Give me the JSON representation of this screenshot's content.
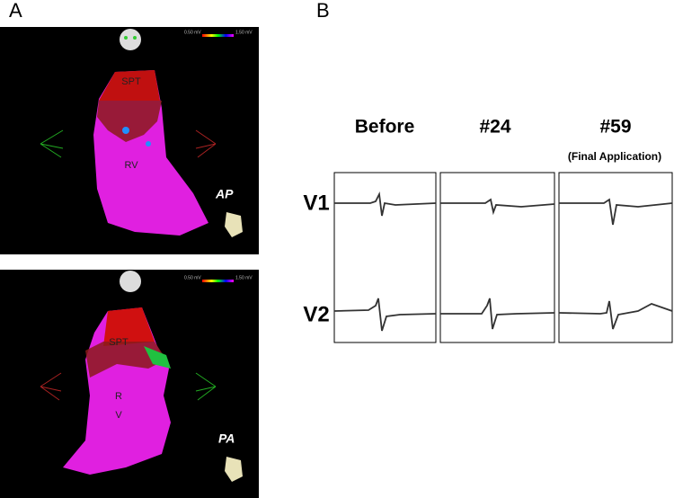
{
  "panel_a": {
    "label": "A",
    "top_map": {
      "regions": [
        "SPT",
        "RV"
      ],
      "view": "AP",
      "scale": [
        "0.50 mV",
        "1.50 mV"
      ]
    },
    "bottom_map": {
      "regions": [
        "SPT",
        "R",
        "V"
      ],
      "view": "PA",
      "scale": [
        "0.50 mV",
        "1.50 mV"
      ]
    }
  },
  "panel_b": {
    "label": "B",
    "columns": [
      "Before",
      "#24",
      "#59"
    ],
    "note": "(Final Application)",
    "leads": [
      "V1",
      "V2"
    ]
  }
}
